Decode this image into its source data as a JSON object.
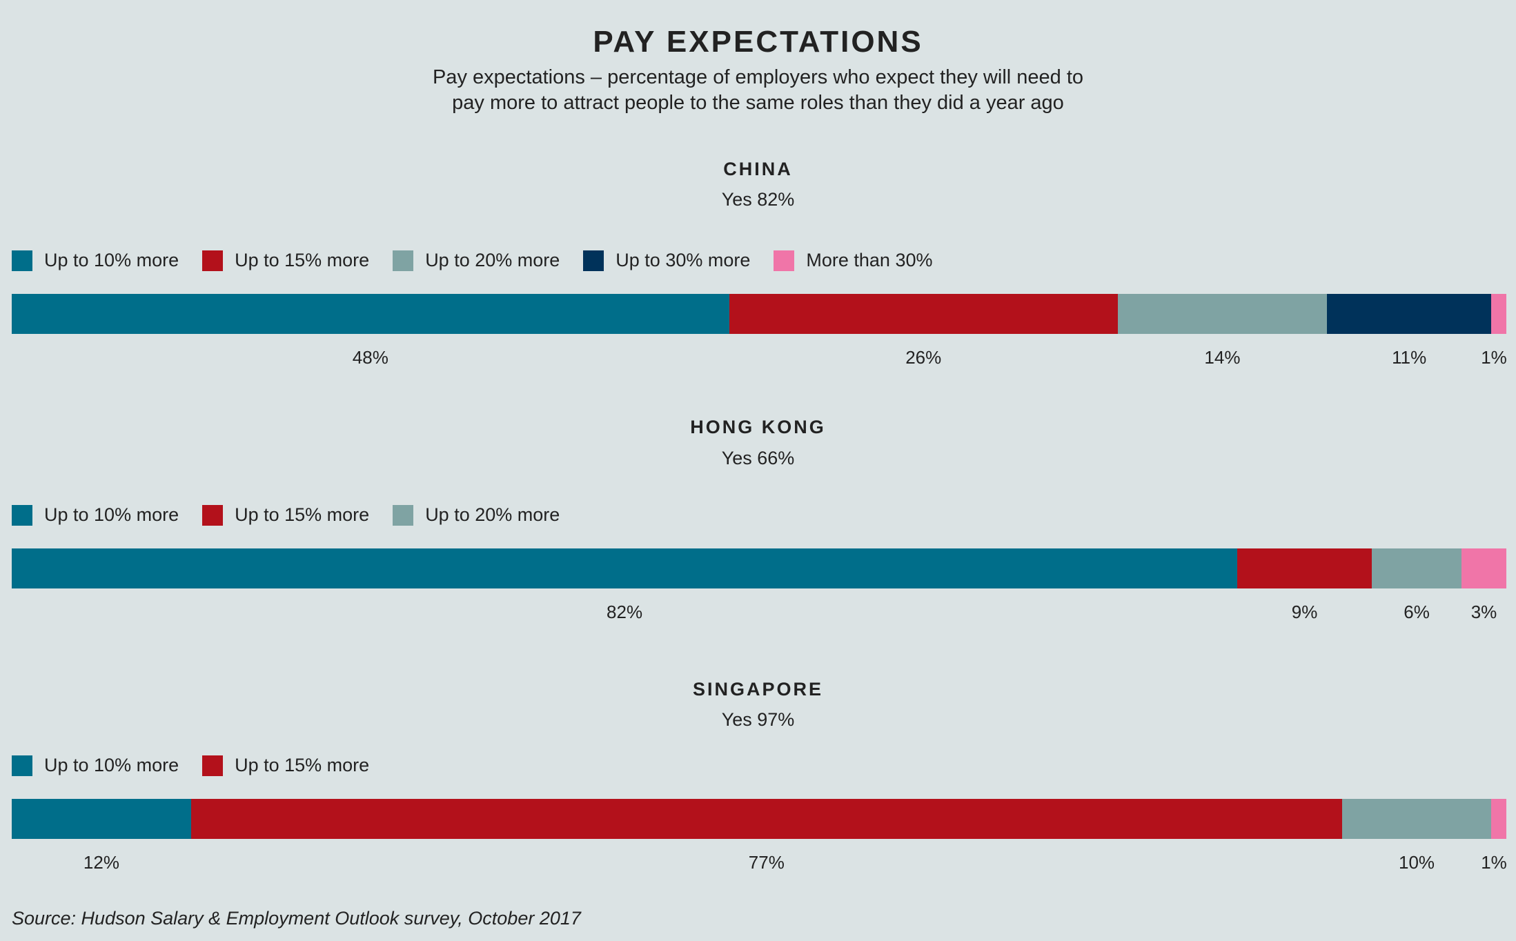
{
  "title": "PAY EXPECTATIONS",
  "subtitle_line1": "Pay expectations – percentage of employers who expect they will need to",
  "subtitle_line2": "pay more to attract people to the same roles than they did a year ago",
  "source": "Source: Hudson Salary & Employment Outlook survey, October 2017",
  "colors": {
    "Up to 10% more": "#006e8a",
    "Up to 15% more": "#b3111b",
    "Up to 20% more": "#7fa3a3",
    "Up to 30% more": "#00325a",
    "More than 30%": "#f075a8"
  },
  "chart_data": [
    {
      "type": "bar",
      "orientation": "horizontal-stacked",
      "title": "CHINA",
      "subtitle": "Yes 82%",
      "legend": [
        "Up to 10% more",
        "Up to 15% more",
        "Up to 20% more",
        "Up to 30% more",
        "More than 30%"
      ],
      "series": [
        {
          "name": "Up to 10% more",
          "value": 48,
          "label": "48%"
        },
        {
          "name": "Up to 15% more",
          "value": 26,
          "label": "26%"
        },
        {
          "name": "Up to 20% more",
          "value": 14,
          "label": "14%"
        },
        {
          "name": "Up to 30% more",
          "value": 11,
          "label": "11%"
        },
        {
          "name": "More than 30%",
          "value": 1,
          "label": "1%"
        }
      ]
    },
    {
      "type": "bar",
      "orientation": "horizontal-stacked",
      "title": "HONG KONG",
      "subtitle": "Yes 66%",
      "legend": [
        "Up to 10% more",
        "Up to 15% more",
        "Up to 20% more"
      ],
      "series": [
        {
          "name": "Up to 10% more",
          "value": 82,
          "label": "82%"
        },
        {
          "name": "Up to 15% more",
          "value": 9,
          "label": "9%"
        },
        {
          "name": "Up to 20% more",
          "value": 6,
          "label": "6%"
        },
        {
          "name": "More than 30%",
          "value": 3,
          "label": "3%"
        }
      ]
    },
    {
      "type": "bar",
      "orientation": "horizontal-stacked",
      "title": "SINGAPORE",
      "subtitle": "Yes 97%",
      "legend": [
        "Up to 10% more",
        "Up to 15% more"
      ],
      "series": [
        {
          "name": "Up to 10% more",
          "value": 12,
          "label": "12%"
        },
        {
          "name": "Up to 15% more",
          "value": 77,
          "label": "77%"
        },
        {
          "name": "Up to 20% more",
          "value": 10,
          "label": "10%"
        },
        {
          "name": "More than 30%",
          "value": 1,
          "label": "1%"
        }
      ]
    }
  ]
}
